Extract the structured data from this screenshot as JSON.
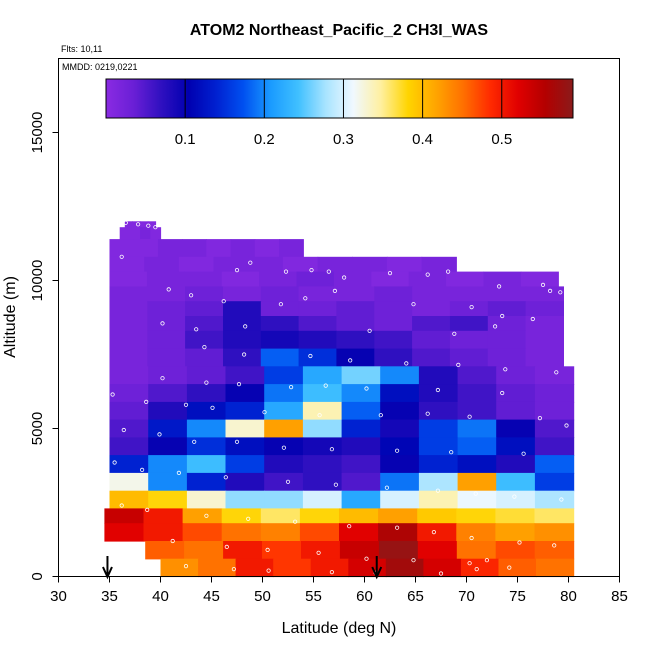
{
  "chart_data": {
    "type": "heatmap",
    "title": "ATOM2 Northeast_Pacific_2 CH3I_WAS",
    "flights_text": "Flts: 10,11",
    "mmdd_text": "MMDD: 0219,0221",
    "xlabel": "Latitude (deg N)",
    "ylabel": "Altitude (m)",
    "xlim": [
      30,
      85
    ],
    "ylim": [
      0,
      17500
    ],
    "x_ticks": [
      "30",
      "35",
      "40",
      "45",
      "50",
      "55",
      "60",
      "65",
      "70",
      "75",
      "80",
      "85"
    ],
    "y_ticks": [
      "0",
      "5000",
      "10000",
      "15000"
    ],
    "colorbar": {
      "range": [
        0,
        0.59
      ],
      "ticks": [
        "0.1",
        "0.2",
        "0.3",
        "0.4",
        "0.5"
      ],
      "tick_values": [
        0.1,
        0.2,
        0.3,
        0.4,
        0.5
      ],
      "colors": [
        "#8a2be2",
        "#6a1fd6",
        "#3010c0",
        "#0000b0",
        "#0020d0",
        "#0050f0",
        "#1a9bff",
        "#40c0ff",
        "#a8e4ff",
        "#f0f8ff",
        "#fff0a0",
        "#ffd400",
        "#ffa500",
        "#ff7000",
        "#ff2a00",
        "#e00000",
        "#b30000",
        "#8b1a1a"
      ]
    },
    "profile_arrows_lat": [
      34.8,
      61.2
    ],
    "layers": [
      {
        "alt": [
          11800,
          12000
        ],
        "lat": [
          36.5,
          39.5
        ],
        "values": [
          0.01,
          0.01,
          0.01,
          0.01
        ]
      },
      {
        "alt": [
          11400,
          11800
        ],
        "lat": [
          36.0,
          40.0
        ],
        "values": [
          0.01,
          0.01,
          0.02,
          0.01
        ]
      },
      {
        "alt": [
          10800,
          11400
        ],
        "lat": [
          35.0,
          54.0
        ],
        "values": [
          0.01,
          0.01,
          0.02,
          0.02,
          0.01,
          0.02,
          0.01,
          0.02
        ]
      },
      {
        "alt": [
          10300,
          10800
        ],
        "lat": [
          35.0,
          69.0
        ],
        "values": [
          0.01,
          0.02,
          0.01,
          0.02,
          0.02,
          0.01,
          0.02,
          0.02,
          0.01,
          0.02
        ]
      },
      {
        "alt": [
          9800,
          10300
        ],
        "lat": [
          35.0,
          79.0
        ],
        "values": [
          0.01,
          0.02,
          0.02,
          0.01,
          0.02,
          0.03,
          0.02,
          0.01,
          0.02,
          0.01,
          0.02,
          0.01
        ]
      },
      {
        "alt": [
          9300,
          9800
        ],
        "lat": [
          35.0,
          79.5
        ],
        "values": [
          0.02,
          0.02,
          0.03,
          0.02,
          0.03,
          0.02,
          0.02,
          0.03,
          0.02,
          0.02,
          0.02,
          0.02
        ]
      },
      {
        "alt": [
          8800,
          9300
        ],
        "lat": [
          35.0,
          79.5
        ],
        "values": [
          0.02,
          0.03,
          0.04,
          0.08,
          0.03,
          0.03,
          0.04,
          0.03,
          0.02,
          0.03,
          0.04,
          0.03
        ]
      },
      {
        "alt": [
          8300,
          8800
        ],
        "lat": [
          35.0,
          79.5
        ],
        "values": [
          0.02,
          0.03,
          0.05,
          0.08,
          0.07,
          0.05,
          0.04,
          0.03,
          0.05,
          0.06,
          0.03,
          0.02
        ]
      },
      {
        "alt": [
          7700,
          8300
        ],
        "lat": [
          35.0,
          79.5
        ],
        "values": [
          0.02,
          0.03,
          0.06,
          0.08,
          0.09,
          0.08,
          0.07,
          0.06,
          0.04,
          0.03,
          0.03,
          0.02
        ]
      },
      {
        "alt": [
          7100,
          7700
        ],
        "lat": [
          35.0,
          79.5
        ],
        "values": [
          0.02,
          0.03,
          0.04,
          0.07,
          0.18,
          0.15,
          0.1,
          0.07,
          0.05,
          0.04,
          0.03,
          0.02
        ]
      },
      {
        "alt": [
          6500,
          7100
        ],
        "lat": [
          35.0,
          80.5
        ],
        "values": [
          0.02,
          0.03,
          0.04,
          0.06,
          0.16,
          0.22,
          0.26,
          0.2,
          0.08,
          0.05,
          0.03,
          0.02
        ]
      },
      {
        "alt": [
          5900,
          6500
        ],
        "lat": [
          35.0,
          80.5
        ],
        "values": [
          0.03,
          0.05,
          0.07,
          0.1,
          0.19,
          0.24,
          0.2,
          0.12,
          0.08,
          0.06,
          0.04,
          0.03
        ]
      },
      {
        "alt": [
          5300,
          5900
        ],
        "lat": [
          35.0,
          80.5
        ],
        "values": [
          0.04,
          0.08,
          0.12,
          0.14,
          0.22,
          0.34,
          0.18,
          0.1,
          0.07,
          0.06,
          0.04,
          0.03
        ]
      },
      {
        "alt": [
          4700,
          5300
        ],
        "lat": [
          35.0,
          80.5
        ],
        "values": [
          0.05,
          0.13,
          0.2,
          0.33,
          0.42,
          0.27,
          0.14,
          0.09,
          0.16,
          0.19,
          0.1,
          0.05
        ]
      },
      {
        "alt": [
          4100,
          4700
        ],
        "lat": [
          35.0,
          80.5
        ],
        "values": [
          0.06,
          0.1,
          0.15,
          0.12,
          0.1,
          0.09,
          0.08,
          0.11,
          0.16,
          0.18,
          0.12,
          0.06
        ]
      },
      {
        "alt": [
          3500,
          4100
        ],
        "lat": [
          35.0,
          80.5
        ],
        "values": [
          0.14,
          0.2,
          0.24,
          0.16,
          0.08,
          0.07,
          0.06,
          0.1,
          0.14,
          0.12,
          0.08,
          0.18
        ]
      },
      {
        "alt": [
          2900,
          3500
        ],
        "lat": [
          35.0,
          80.5
        ],
        "values": [
          0.32,
          0.2,
          0.14,
          0.08,
          0.06,
          0.07,
          0.05,
          0.19,
          0.28,
          0.42,
          0.24,
          0.16
        ]
      },
      {
        "alt": [
          2300,
          2900
        ],
        "lat": [
          35.0,
          80.5
        ],
        "values": [
          0.4,
          0.38,
          0.33,
          0.27,
          0.27,
          0.3,
          0.22,
          0.3,
          0.34,
          0.31,
          0.3,
          0.28
        ]
      },
      {
        "alt": [
          1800,
          2300
        ],
        "lat": [
          34.5,
          80.5
        ],
        "values": [
          0.54,
          0.5,
          0.42,
          0.38,
          0.36,
          0.38,
          0.4,
          0.42,
          0.39,
          0.38,
          0.37,
          0.36
        ]
      },
      {
        "alt": [
          1200,
          1800
        ],
        "lat": [
          34.5,
          80.5
        ],
        "values": [
          0.52,
          0.5,
          0.47,
          0.45,
          0.44,
          0.47,
          0.52,
          0.56,
          0.5,
          0.44,
          0.42,
          0.43
        ]
      },
      {
        "alt": [
          600,
          1200
        ],
        "lat": [
          38.5,
          80.5
        ],
        "values": [
          0.46,
          0.45,
          0.5,
          0.48,
          0.5,
          0.54,
          0.58,
          0.52,
          0.45,
          0.47,
          0.46
        ]
      },
      {
        "alt": [
          0,
          600
        ],
        "lat": [
          40.0,
          80.5
        ],
        "values": [
          0.43,
          0.45,
          0.5,
          0.48,
          0.5,
          0.53,
          0.57,
          0.53,
          0.49,
          0.46,
          0.45
        ]
      }
    ],
    "samples": [
      [
        36.6,
        11950
      ],
      [
        37.8,
        11900
      ],
      [
        38.8,
        11850
      ],
      [
        39.5,
        11800
      ],
      [
        36.2,
        10800
      ],
      [
        48.8,
        10600
      ],
      [
        47.5,
        10350
      ],
      [
        52.3,
        10300
      ],
      [
        54.8,
        10350
      ],
      [
        56.5,
        10300
      ],
      [
        58.0,
        10100
      ],
      [
        62.5,
        10250
      ],
      [
        66.2,
        10200
      ],
      [
        68.2,
        10300
      ],
      [
        73.2,
        9800
      ],
      [
        77.5,
        9850
      ],
      [
        78.2,
        9650
      ],
      [
        79.2,
        9600
      ],
      [
        40.8,
        9700
      ],
      [
        43.0,
        9500
      ],
      [
        46.2,
        9300
      ],
      [
        51.8,
        9200
      ],
      [
        54.2,
        9400
      ],
      [
        57.1,
        9650
      ],
      [
        64.8,
        9200
      ],
      [
        70.5,
        9100
      ],
      [
        73.5,
        8800
      ],
      [
        76.5,
        8700
      ],
      [
        40.2,
        8550
      ],
      [
        43.5,
        8350
      ],
      [
        48.3,
        8450
      ],
      [
        60.5,
        8300
      ],
      [
        68.8,
        8200
      ],
      [
        72.8,
        8450
      ],
      [
        44.3,
        7750
      ],
      [
        48.2,
        7500
      ],
      [
        54.7,
        7450
      ],
      [
        58.6,
        7300
      ],
      [
        64.1,
        7200
      ],
      [
        69.2,
        7150
      ],
      [
        73.8,
        7000
      ],
      [
        78.8,
        6900
      ],
      [
        40.2,
        6700
      ],
      [
        44.5,
        6550
      ],
      [
        47.7,
        6500
      ],
      [
        52.8,
        6400
      ],
      [
        56.2,
        6450
      ],
      [
        60.2,
        6350
      ],
      [
        67.2,
        6300
      ],
      [
        73.5,
        6200
      ],
      [
        35.3,
        6150
      ],
      [
        38.6,
        5900
      ],
      [
        42.5,
        5800
      ],
      [
        45.1,
        5700
      ],
      [
        50.2,
        5550
      ],
      [
        55.6,
        5450
      ],
      [
        61.6,
        5450
      ],
      [
        66.2,
        5500
      ],
      [
        70.3,
        5400
      ],
      [
        77.2,
        5350
      ],
      [
        79.8,
        5100
      ],
      [
        36.4,
        4950
      ],
      [
        39.9,
        4800
      ],
      [
        43.3,
        4550
      ],
      [
        47.5,
        4550
      ],
      [
        52.1,
        4350
      ],
      [
        56.8,
        4300
      ],
      [
        63.2,
        4250
      ],
      [
        68.5,
        4200
      ],
      [
        75.6,
        4150
      ],
      [
        35.5,
        3850
      ],
      [
        38.2,
        3600
      ],
      [
        41.8,
        3500
      ],
      [
        46.4,
        3350
      ],
      [
        52.5,
        3200
      ],
      [
        57.2,
        3100
      ],
      [
        62.2,
        3000
      ],
      [
        67.2,
        2900
      ],
      [
        70.9,
        2800
      ],
      [
        74.7,
        2700
      ],
      [
        79.3,
        2600
      ],
      [
        36.2,
        2400
      ],
      [
        38.7,
        2250
      ],
      [
        44.5,
        2050
      ],
      [
        48.6,
        1950
      ],
      [
        53.2,
        1850
      ],
      [
        58.5,
        1700
      ],
      [
        63.2,
        1650
      ],
      [
        66.8,
        1500
      ],
      [
        70.5,
        1300
      ],
      [
        75.2,
        1150
      ],
      [
        78.6,
        1050
      ],
      [
        41.2,
        1200
      ],
      [
        46.5,
        1000
      ],
      [
        50.5,
        900
      ],
      [
        55.5,
        800
      ],
      [
        60.2,
        600
      ],
      [
        64.8,
        550
      ],
      [
        70.3,
        450
      ],
      [
        74.2,
        300
      ],
      [
        42.5,
        350
      ],
      [
        47.2,
        250
      ],
      [
        50.6,
        200
      ],
      [
        56.8,
        150
      ],
      [
        61.1,
        120
      ],
      [
        67.5,
        100
      ],
      [
        71.0,
        250
      ],
      [
        72.0,
        550
      ]
    ]
  }
}
